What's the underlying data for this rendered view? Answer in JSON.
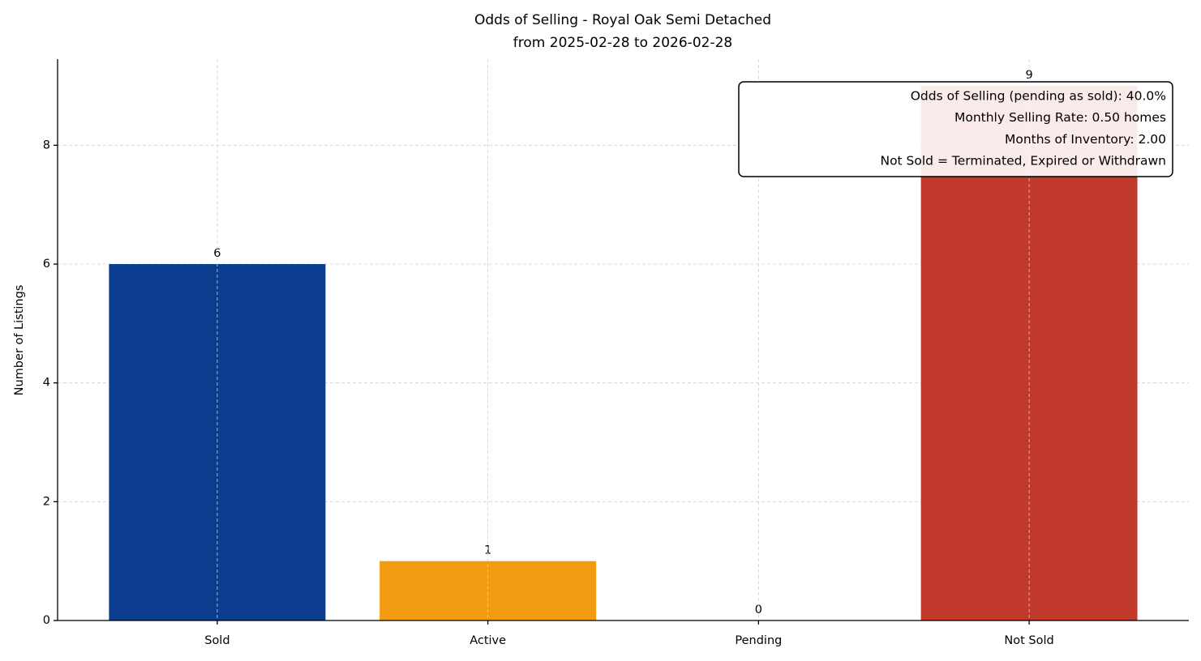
{
  "chart_data": {
    "type": "bar",
    "title": "Odds of Selling - Royal Oak Semi Detached",
    "subtitle": "from 2025-02-28 to 2026-02-28",
    "y_label": "Number of Listings",
    "categories": [
      "Sold",
      "Active",
      "Pending",
      "Not Sold"
    ],
    "values": [
      6,
      1,
      0,
      9
    ],
    "colors": [
      "#0b3d8f",
      "#f39c12",
      "#7f8c8d",
      "#c0392b"
    ],
    "ylim": [
      0,
      9.45
    ],
    "yticks": [
      0,
      2,
      4,
      6,
      8
    ],
    "grid": true,
    "annotation": [
      "Odds of Selling (pending as sold): 40.0%",
      "Monthly Selling Rate: 0.50 homes",
      "Months of Inventory: 2.00",
      "Not Sold = Terminated, Expired or Withdrawn"
    ]
  }
}
